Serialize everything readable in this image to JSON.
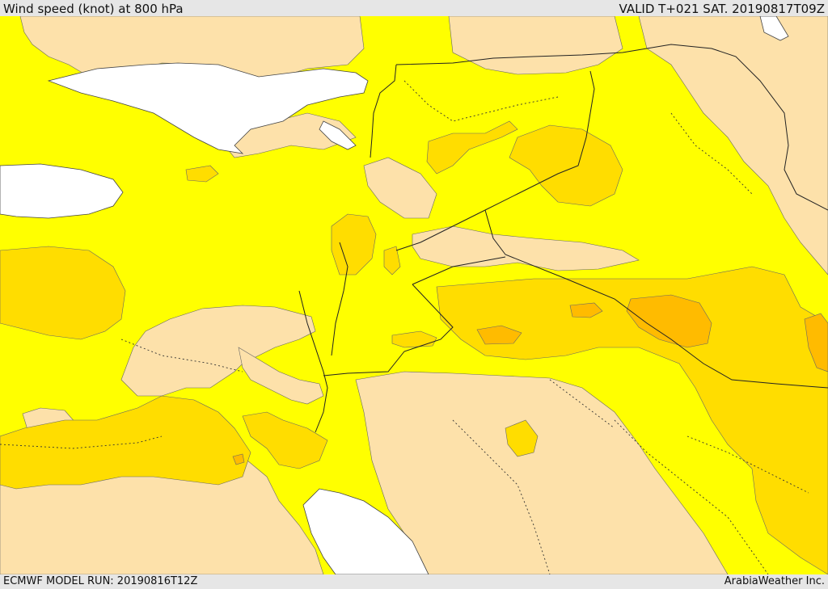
{
  "header": {
    "title": "Wind speed (knot) at 800 hPa",
    "valid": "VALID T+021 SAT. 20190817T09Z"
  },
  "footer": {
    "model_run": "ECMWF MODEL RUN: 20190816T12Z",
    "credit": "ArabiaWeather Inc."
  },
  "map": {
    "variable": "wind speed",
    "level": "800 hPa",
    "unit": "knot",
    "colors": {
      "sea": "#ffffff",
      "calm": "#fde1aa",
      "light": "#ffff00",
      "moderate": "#ffdd00",
      "strong": "#ffbb00",
      "frame": "#e6e6e6"
    }
  }
}
